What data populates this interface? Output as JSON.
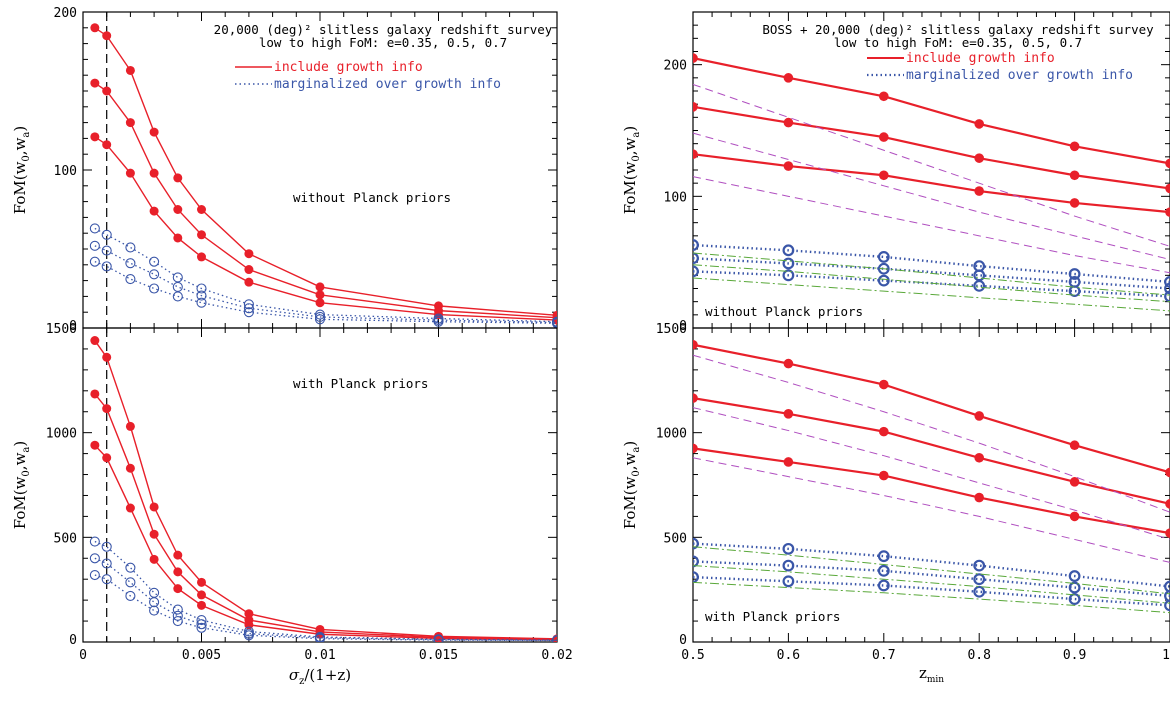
{
  "chart_data": [
    {
      "type": "line",
      "panel": "top-left",
      "xlim": [
        0,
        0.02
      ],
      "ylim": [
        0,
        200
      ],
      "x_ticks": [
        "0",
        "0.005",
        "0.01",
        "0.015",
        "0.02"
      ],
      "y_ticks": [
        "0",
        "100",
        "200"
      ],
      "ylabel": "FoM(w0,wa)",
      "xlabel": "",
      "title_lines": [
        "20,000 (deg)² slitless galaxy redshift survey",
        "low to high FoM: e=0.35, 0.5, 0.7"
      ],
      "annotation": "without Planck priors",
      "legend": [
        {
          "label": "include growth info",
          "style": "solid",
          "color": "#e8202a"
        },
        {
          "label": "marginalized over growth info",
          "style": "dotted",
          "color": "#3a56a8"
        }
      ],
      "vline_x": 0.001,
      "x": [
        0.0005,
        0.001,
        0.002,
        0.003,
        0.004,
        0.005,
        0.007,
        0.01,
        0.015,
        0.02
      ],
      "series": [
        {
          "group": "growth",
          "values": [
            190,
            185,
            163,
            124,
            95,
            75,
            47,
            26,
            14,
            8
          ]
        },
        {
          "group": "growth",
          "values": [
            155,
            150,
            130,
            98,
            75,
            59,
            37,
            21,
            11,
            6.5
          ]
        },
        {
          "group": "growth",
          "values": [
            121,
            116,
            98,
            74,
            57,
            45,
            29,
            16,
            8.5,
            5
          ]
        },
        {
          "group": "marginalized",
          "values": [
            63,
            59,
            51,
            42,
            32,
            25,
            15,
            8.5,
            6,
            4
          ]
        },
        {
          "group": "marginalized",
          "values": [
            52,
            49,
            41,
            34,
            26,
            20.5,
            12.5,
            7,
            5,
            3.5
          ]
        },
        {
          "group": "marginalized",
          "values": [
            42,
            39,
            31,
            25,
            20,
            16,
            10,
            5.5,
            4,
            3
          ]
        }
      ]
    },
    {
      "type": "line",
      "panel": "bottom-left",
      "xlim": [
        0,
        0.02
      ],
      "ylim": [
        0,
        1500
      ],
      "x_ticks": [
        "0",
        "0.005",
        "0.01",
        "0.015",
        "0.02"
      ],
      "y_ticks": [
        "0",
        "500",
        "1000",
        "1500"
      ],
      "ylabel": "FoM(w0,wa)",
      "xlabel": "σz/(1+z)",
      "annotation": "with Planck priors",
      "vline_x": 0.001,
      "x": [
        0.0005,
        0.001,
        0.002,
        0.003,
        0.004,
        0.005,
        0.007,
        0.01,
        0.015,
        0.02
      ],
      "series": [
        {
          "group": "growth",
          "values": [
            1440,
            1360,
            1030,
            645,
            415,
            285,
            135,
            60,
            27,
            15
          ]
        },
        {
          "group": "growth",
          "values": [
            1185,
            1115,
            830,
            515,
            335,
            225,
            105,
            48,
            22,
            12
          ]
        },
        {
          "group": "growth",
          "values": [
            940,
            880,
            640,
            395,
            255,
            175,
            82,
            37,
            17,
            10
          ]
        },
        {
          "group": "marginalized",
          "values": [
            480,
            455,
            355,
            235,
            155,
            105,
            50,
            24,
            13,
            9
          ]
        },
        {
          "group": "marginalized",
          "values": [
            400,
            375,
            285,
            190,
            125,
            85,
            40,
            20,
            11,
            8
          ]
        },
        {
          "group": "marginalized",
          "values": [
            320,
            300,
            220,
            150,
            100,
            68,
            32,
            16,
            9,
            7
          ]
        }
      ]
    },
    {
      "type": "line",
      "panel": "top-right",
      "xlim": [
        0.5,
        1.0
      ],
      "ylim": [
        0,
        240
      ],
      "x_ticks": [
        "0.5",
        "0.6",
        "0.7",
        "0.8",
        "0.9",
        "1"
      ],
      "y_ticks": [
        "0",
        "100",
        "200"
      ],
      "ylabel": "FoM(w0,wa)",
      "xlabel": "",
      "title_lines": [
        "BOSS + 20,000 (deg)² slitless galaxy redshift survey",
        "low to high FoM: e=0.35, 0.5, 0.7"
      ],
      "annotation": "without Planck priors",
      "legend": [
        {
          "label": "include growth info",
          "style": "solid",
          "color": "#e8202a"
        },
        {
          "label": "marginalized over growth info",
          "style": "dotted",
          "color": "#3a56a8"
        }
      ],
      "x": [
        0.5,
        0.6,
        0.7,
        0.8,
        0.9,
        1.0
      ],
      "series": [
        {
          "group": "growth",
          "values": [
            205,
            190,
            176,
            155,
            138,
            125
          ]
        },
        {
          "group": "growth",
          "values": [
            168,
            156,
            145,
            129,
            116,
            106
          ]
        },
        {
          "group": "growth",
          "values": [
            132,
            123,
            116,
            104,
            95,
            88
          ]
        },
        {
          "group": "marginalized",
          "values": [
            63,
            59,
            54,
            47,
            41,
            35
          ]
        },
        {
          "group": "marginalized",
          "values": [
            53,
            49,
            45,
            40,
            35,
            30
          ]
        },
        {
          "group": "marginalized",
          "values": [
            43,
            40,
            36,
            32,
            28,
            24
          ]
        },
        {
          "group": "dashed",
          "values": [
            185,
            160,
            135,
            110,
            85,
            62
          ]
        },
        {
          "group": "dashed",
          "values": [
            148,
            128,
            108,
            88,
            70,
            52
          ]
        },
        {
          "group": "dashed",
          "values": [
            115,
            100,
            85,
            70,
            55,
            42
          ]
        },
        {
          "group": "dashdot",
          "values": [
            57,
            51,
            45,
            38,
            31,
            25
          ]
        },
        {
          "group": "dashdot",
          "values": [
            48,
            43,
            37,
            31,
            25,
            20
          ]
        },
        {
          "group": "dashdot",
          "values": [
            38,
            33,
            28,
            23,
            18,
            13
          ]
        }
      ]
    },
    {
      "type": "line",
      "panel": "bottom-right",
      "xlim": [
        0.5,
        1.0
      ],
      "ylim": [
        0,
        1500
      ],
      "x_ticks": [
        "0.5",
        "0.6",
        "0.7",
        "0.8",
        "0.9",
        "1"
      ],
      "y_ticks": [
        "0",
        "500",
        "1000",
        "1500"
      ],
      "ylabel": "FoM(w0,wa)",
      "xlabel": "zmin",
      "annotation": "with Planck priors",
      "x": [
        0.5,
        0.6,
        0.7,
        0.8,
        0.9,
        1.0
      ],
      "series": [
        {
          "group": "growth",
          "values": [
            1420,
            1330,
            1230,
            1080,
            940,
            810
          ]
        },
        {
          "group": "growth",
          "values": [
            1165,
            1090,
            1005,
            880,
            765,
            660
          ]
        },
        {
          "group": "growth",
          "values": [
            925,
            860,
            795,
            690,
            600,
            520
          ]
        },
        {
          "group": "marginalized",
          "values": [
            470,
            445,
            410,
            365,
            315,
            265
          ]
        },
        {
          "group": "marginalized",
          "values": [
            385,
            365,
            340,
            300,
            260,
            220
          ]
        },
        {
          "group": "marginalized",
          "values": [
            310,
            290,
            270,
            240,
            205,
            175
          ]
        },
        {
          "group": "dashed",
          "values": [
            1370,
            1240,
            1100,
            950,
            790,
            620
          ]
        },
        {
          "group": "dashed",
          "values": [
            1120,
            1010,
            890,
            760,
            630,
            490
          ]
        },
        {
          "group": "dashed",
          "values": [
            880,
            790,
            700,
            600,
            490,
            380
          ]
        },
        {
          "group": "dashdot",
          "values": [
            455,
            415,
            370,
            325,
            280,
            230
          ]
        },
        {
          "group": "dashdot",
          "values": [
            365,
            335,
            300,
            265,
            225,
            185
          ]
        },
        {
          "group": "dashdot",
          "values": [
            285,
            260,
            235,
            205,
            175,
            140
          ]
        }
      ]
    }
  ],
  "colors": {
    "growth": "#e8202a",
    "marginalized": "#3a56a8",
    "dashed": "#b04fc0",
    "dashdot": "#5aa83a",
    "vline": "#000000"
  }
}
